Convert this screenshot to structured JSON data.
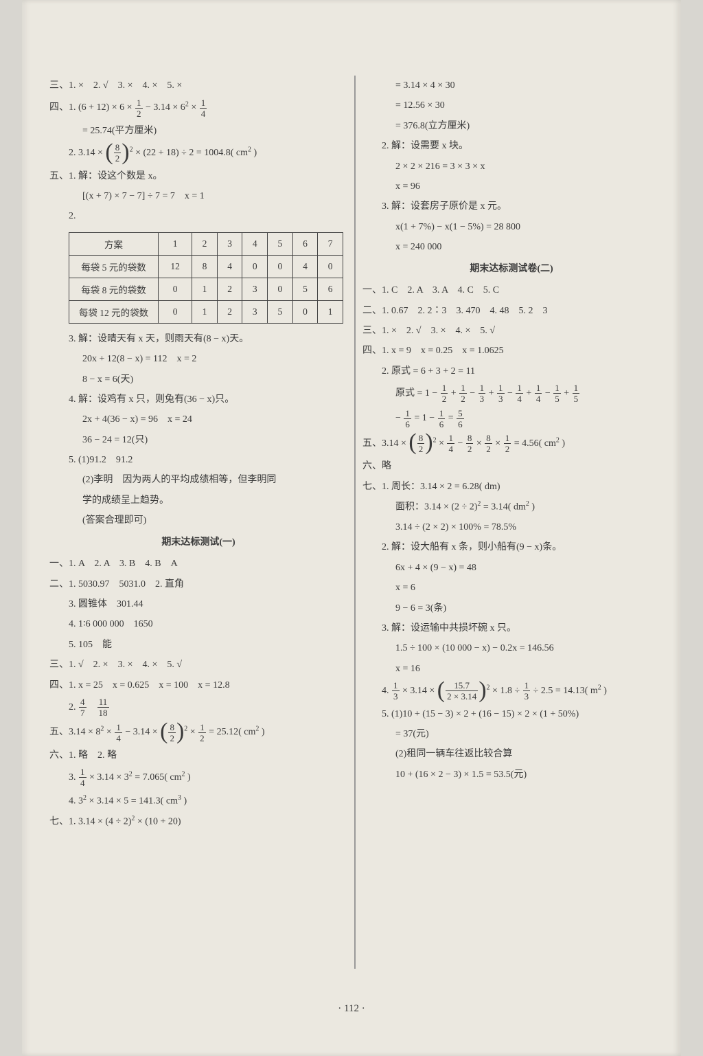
{
  "page_number": "· 112 ·",
  "background_color": "#ebe8e0",
  "text_color": "#3a3a3a",
  "table_border_color": "#444",
  "font_size": 14,
  "left": {
    "l1": "三、1. ×　2. √　3. ×　4. ×　5. ×",
    "l2_pre": "四、1. (6 + 12) × 6 × ",
    "l2_mid": " − 3.14 × 6",
    "l2_post": " × ",
    "l3": "= 25.74(平方厘米)",
    "l4_pre": "2. 3.14 × ",
    "l4_post": " × (22 + 18) ÷ 2 = 1004.8( cm",
    "l4_end": " )",
    "l5": "五、1. 解：设这个数是 x。",
    "l6": "[(x + 7) × 7 − 7] ÷ 7 = 7　x = 1",
    "l7": "2.",
    "table": {
      "headers": [
        "方案",
        "1",
        "2",
        "3",
        "4",
        "5",
        "6",
        "7"
      ],
      "rows": [
        [
          "每袋 5 元的袋数",
          "12",
          "8",
          "4",
          "0",
          "0",
          "4",
          "0"
        ],
        [
          "每袋 8 元的袋数",
          "0",
          "1",
          "2",
          "3",
          "0",
          "5",
          "6"
        ],
        [
          "每袋 12 元的袋数",
          "0",
          "1",
          "2",
          "3",
          "5",
          "0",
          "1"
        ]
      ]
    },
    "l8": "3. 解：设晴天有 x 天，则雨天有(8 − x)天。",
    "l9": "20x + 12(8 − x) = 112　x = 2",
    "l10": "8 − x = 6(天)",
    "l11": "4. 解：设鸡有 x 只，则兔有(36 − x)只。",
    "l12": "2x + 4(36 − x) = 96　x = 24",
    "l13": "36 − 24 = 12(只)",
    "l14": "5. (1)91.2　91.2",
    "l15": "(2)李明　因为两人的平均成绩相等，但李明同",
    "l16": "学的成绩呈上趋势。",
    "l17": "(答案合理即可)",
    "title1": "期末达标测试(一)",
    "l18": "一、1. A　2. A　3. B　4. B　A",
    "l19": "二、1. 5030.97　5031.0　2. 直角",
    "l20": "3. 圆锥体　301.44",
    "l21": "4. 1∶6 000 000　1650",
    "l22": "5. 105　能",
    "l23": "三、1. √　2. ×　3. ×　4. ×　5. √",
    "l24": "四、1. x = 25　x = 0.625　x = 100　x = 12.8",
    "l25_pre": "2. ",
    "l25_sep": "　",
    "l26_pre": "五、3.14 × 8",
    "l26_mid": " × ",
    "l26_mid2": " − 3.14 × ",
    "l26_mid3": " × ",
    "l26_post": " = 25.12( cm",
    "l26_end": " )",
    "l27": "六、1. 略　2. 略",
    "l28_pre": "3. ",
    "l28_mid": " × 3.14 × 3",
    "l28_post": " = 7.065( cm",
    "l28_end": " )",
    "l29_pre": "4. 3",
    "l29_mid": " × 3.14 × 5 = 141.3( cm",
    "l29_end": " )",
    "l30_pre": "七、1. 3.14 × (4 ÷ 2)",
    "l30_post": " × (10 + 20)"
  },
  "right": {
    "r1": "= 3.14 × 4 × 30",
    "r2": "= 12.56 × 30",
    "r3": "= 376.8(立方厘米)",
    "r4": "2. 解：设需要 x 块。",
    "r5": "2 × 2 × 216 = 3 × 3 × x",
    "r6": "x = 96",
    "r7": "3. 解：设套房子原价是 x 元。",
    "r8": "x(1 + 7%) − x(1 − 5%) = 28 800",
    "r9": "x = 240 000",
    "title2": "期末达标测试卷(二)",
    "r10": "一、1. C　2. A　3. A　4. C　5. C",
    "r11": "二、1. 0.67　2. 2∶3　3. 470　4. 48　5. 2　3",
    "r12": "三、1. ×　2. √　3. ×　4. ×　5. √",
    "r13": "四、1. x = 9　x = 0.25　x = 1.0625",
    "r14": "2. 原式 = 6 + 3 + 2 = 11",
    "r15_pre": "原式 = 1 − ",
    "r15a": " + ",
    "r15b": " − ",
    "r16_pre": "− ",
    "r16_mid": " = 1 − ",
    "r16_mid2": " = ",
    "r17_pre": "五、3.14 × ",
    "r17_mid": " × ",
    "r17_mid2": " − ",
    "r17_mid3": " × ",
    "r17_mid4": " × ",
    "r17_post": " = 4.56( cm",
    "r17_end": " )",
    "r18": "六、略",
    "r19": "七、1. 周长：3.14 × 2 = 6.28( dm)",
    "r20_pre": "面积：3.14 × (2 ÷ 2)",
    "r20_post": " = 3.14( dm",
    "r20_end": " )",
    "r21": "3.14 ÷ (2 × 2) × 100% = 78.5%",
    "r22": "2. 解：设大船有 x 条，则小船有(9 − x)条。",
    "r23": "6x + 4 × (9 − x) = 48",
    "r24": "x = 6",
    "r25": "9 − 6 = 3(条)",
    "r26": "3. 解：设运输中共损坏碗 x 只。",
    "r27": "1.5 ÷ 100 × (10 000 − x) − 0.2x = 146.56",
    "r28": "x = 16",
    "r29_pre": "4. ",
    "r29_mid": " × 3.14 × ",
    "r29_mid2": " × 1.8 ÷ ",
    "r29_post": " ÷ 2.5 = 14.13( m",
    "r29_end": " )",
    "r30": "5. (1)10 + (15 − 3) × 2 + (16 − 15) × 2 × (1 + 50%)",
    "r31": "= 37(元)",
    "r32": "(2)租同一辆车往返比较合算",
    "r33": "10 + (16 × 2 − 3) × 1.5 = 53.5(元)"
  },
  "fracs": {
    "half": {
      "n": "1",
      "d": "2"
    },
    "quarter": {
      "n": "1",
      "d": "4"
    },
    "eighthalf": {
      "n": "8",
      "d": "2"
    },
    "fourseven": {
      "n": "4",
      "d": "7"
    },
    "eleveneighteen": {
      "n": "11",
      "d": "18"
    },
    "third": {
      "n": "1",
      "d": "3"
    },
    "fifth": {
      "n": "1",
      "d": "5"
    },
    "sixth": {
      "n": "1",
      "d": "6"
    },
    "fivesixth": {
      "n": "5",
      "d": "6"
    },
    "spec": {
      "n": "15.7",
      "d": "2 × 3.14"
    }
  }
}
